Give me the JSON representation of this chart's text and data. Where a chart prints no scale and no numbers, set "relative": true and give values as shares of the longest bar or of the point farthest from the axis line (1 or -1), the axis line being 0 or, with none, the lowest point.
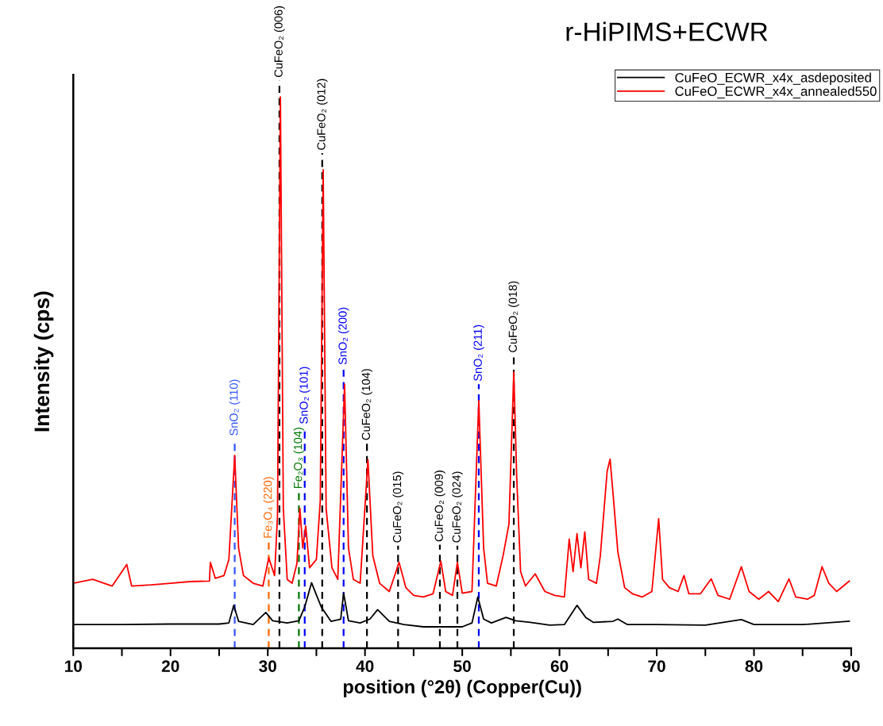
{
  "chart_data": {
    "type": "line",
    "title": "r-HiPIMS+ECWR",
    "xlabel": "position (°2θ) (Copper(Cu))",
    "ylabel": "Intensity (cps)",
    "relative": true,
    "tick_labels": "x",
    "legend": "top right",
    "grid": false,
    "xlim": [
      10,
      90
    ],
    "xticks": [
      10,
      {
        "value": 15,
        "label": null
      },
      20,
      {
        "value": 25,
        "label": null
      },
      30,
      {
        "value": 35,
        "label": null
      },
      40,
      {
        "value": 45,
        "label": null
      },
      50,
      {
        "value": 55,
        "label": null
      },
      60,
      {
        "value": 65,
        "label": null
      },
      70,
      {
        "value": 75,
        "label": null
      },
      80,
      {
        "value": 85,
        "label": null
      },
      90
    ],
    "series": [
      {
        "name": "CuFeO_ECWR_x4x_asdeposited",
        "color": "#000000",
        "x": [
          10,
          15,
          20,
          25,
          26.0,
          26.5,
          27.0,
          28.5,
          29.8,
          30.5,
          32,
          33.2,
          33.8,
          34.5,
          35.5,
          36.5,
          37.5,
          37.8,
          38.3,
          39.5,
          40.5,
          41.3,
          42.5,
          44,
          46,
          48,
          50,
          51.0,
          51.6,
          52.2,
          53,
          54.5,
          55.5,
          57,
          59,
          60.5,
          61.8,
          62.7,
          63.5,
          65.5,
          66,
          67,
          70,
          75,
          78.7,
          80,
          85,
          89.8
        ],
        "values": [
          0.043,
          0.043,
          0.044,
          0.044,
          0.046,
          0.078,
          0.049,
          0.043,
          0.065,
          0.05,
          0.046,
          0.05,
          0.075,
          0.119,
          0.075,
          0.049,
          0.053,
          0.1,
          0.05,
          0.046,
          0.053,
          0.07,
          0.049,
          0.043,
          0.039,
          0.039,
          0.039,
          0.046,
          0.093,
          0.053,
          0.046,
          0.056,
          0.05,
          0.047,
          0.042,
          0.043,
          0.078,
          0.056,
          0.047,
          0.049,
          0.053,
          0.043,
          0.043,
          0.042,
          0.052,
          0.043,
          0.043,
          0.049
        ]
      },
      {
        "name": "CuFeO_ECWR_x4x_annealed550",
        "color": "#ff0000",
        "x": [
          10,
          12,
          14,
          15.5,
          16,
          18,
          20,
          22,
          24,
          24.1,
          24.6,
          25.5,
          26.0,
          26.6,
          27,
          27.5,
          28.5,
          29.5,
          30.1,
          30.7,
          31.0,
          31.3,
          31.6,
          32,
          32.5,
          33.0,
          33.3,
          33.6,
          33.9,
          34.3,
          35.0,
          35.4,
          35.7,
          36.0,
          36.6,
          37.2,
          37.9,
          38.3,
          38.8,
          39.5,
          40.3,
          40.8,
          41.5,
          42.5,
          43.5,
          44.2,
          45,
          46,
          47,
          47.8,
          48.3,
          49.0,
          49.5,
          50.0,
          51.0,
          51.7,
          52.2,
          52.6,
          53.5,
          54.2,
          54.8,
          55.3,
          55.6,
          56.0,
          56.5,
          57.5,
          58.5,
          59.5,
          60.5,
          61.0,
          61.4,
          61.8,
          62.2,
          62.6,
          63.0,
          63.8,
          64.2,
          64.9,
          65.2,
          65.5,
          66.0,
          66.7,
          67.5,
          68.5,
          69.5,
          70.2,
          70.6,
          71.3,
          72.2,
          72.8,
          73.3,
          74.5,
          75.6,
          76.3,
          77.5,
          78.7,
          79.5,
          80.5,
          81.5,
          82.5,
          83.6,
          84.3,
          85.5,
          86.2,
          87.0,
          87.7,
          88.5,
          89.2,
          89.8
        ],
        "values": [
          0.118,
          0.125,
          0.113,
          0.152,
          0.113,
          0.115,
          0.118,
          0.121,
          0.122,
          0.156,
          0.127,
          0.132,
          0.161,
          0.35,
          0.182,
          0.132,
          0.118,
          0.113,
          0.164,
          0.132,
          0.24,
          1.0,
          0.254,
          0.125,
          0.118,
          0.154,
          0.254,
          0.182,
          0.222,
          0.146,
          0.161,
          0.268,
          0.868,
          0.254,
          0.146,
          0.125,
          0.479,
          0.182,
          0.125,
          0.118,
          0.342,
          0.168,
          0.118,
          0.103,
          0.156,
          0.11,
          0.096,
          0.093,
          0.099,
          0.158,
          0.103,
          0.096,
          0.156,
          0.1,
          0.103,
          0.449,
          0.182,
          0.118,
          0.113,
          0.168,
          0.225,
          0.501,
          0.311,
          0.139,
          0.113,
          0.135,
          0.103,
          0.096,
          0.093,
          0.198,
          0.139,
          0.208,
          0.146,
          0.211,
          0.125,
          0.118,
          0.168,
          0.321,
          0.343,
          0.282,
          0.175,
          0.11,
          0.099,
          0.093,
          0.103,
          0.235,
          0.125,
          0.11,
          0.103,
          0.132,
          0.099,
          0.099,
          0.126,
          0.096,
          0.089,
          0.148,
          0.103,
          0.089,
          0.103,
          0.085,
          0.126,
          0.093,
          0.089,
          0.096,
          0.148,
          0.118,
          0.103,
          0.113,
          0.122
        ]
      }
    ],
    "ref_lines": [
      {
        "axis": "x",
        "value": 26.6,
        "label": "SnO₂ (110)",
        "color": "#3355ff",
        "line_style": "dashed"
      },
      {
        "axis": "x",
        "value": 30.1,
        "label": "Fe₃O₄ (220)",
        "color": "#ff6600",
        "line_style": "dashed"
      },
      {
        "axis": "x",
        "value": 31.2,
        "label": "CuFeO₂ (006)",
        "color": "#000000",
        "line_style": "dashed"
      },
      {
        "axis": "x",
        "value": 33.2,
        "label": "Fe₂O₃ (104)",
        "color": "#007700",
        "line_style": "dashed"
      },
      {
        "axis": "x",
        "value": 33.8,
        "label": "SnO₂ (101)",
        "color": "#0000ff",
        "line_style": "dashed"
      },
      {
        "axis": "x",
        "value": 35.6,
        "label": "CuFeO₂ (012)",
        "color": "#000000",
        "line_style": "dashed"
      },
      {
        "axis": "x",
        "value": 37.8,
        "label": "SnO₂ (200)",
        "color": "#0000ff",
        "line_style": "dashed"
      },
      {
        "axis": "x",
        "value": 40.2,
        "label": "CuFeO₂ (104)",
        "color": "#000000",
        "line_style": "dashed"
      },
      {
        "axis": "x",
        "value": 43.4,
        "label": "CuFeO₂ (015)",
        "color": "#000000",
        "line_style": "dashed"
      },
      {
        "axis": "x",
        "value": 47.7,
        "label": "CuFeO₂ (009)",
        "color": "#000000",
        "line_style": "dashed"
      },
      {
        "axis": "x",
        "value": 49.5,
        "label": "CuFeO₂ (024)",
        "color": "#000000",
        "line_style": "dashed"
      },
      {
        "axis": "x",
        "value": 51.7,
        "label": "SnO₂ (211)",
        "color": "#0000ff",
        "line_style": "dashed"
      },
      {
        "axis": "x",
        "value": 55.3,
        "label": "CuFeO₂ (018)",
        "color": "#000000",
        "line_style": "dashed"
      }
    ]
  }
}
